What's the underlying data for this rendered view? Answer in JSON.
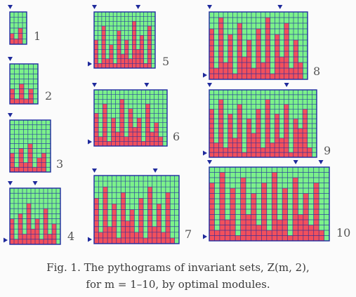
{
  "caption": {
    "line1": "Fig. 1. The pythograms of invariant sets,  Z(m, 2),",
    "line2": "for m = 1–10,  by optimal modules."
  },
  "colors": {
    "green": "#7cf28a",
    "red": "#f2505c",
    "grid": "#1e2aa0",
    "marker": "#1f2a9c",
    "label": "#555555"
  },
  "pythograms": [
    {
      "m": 1,
      "label": "1",
      "cols": 4,
      "rows": 6,
      "heights": [
        2,
        1,
        3,
        0
      ]
    },
    {
      "m": 2,
      "label": "2",
      "cols": 6,
      "rows": 8,
      "heights": [
        3,
        1,
        4,
        1,
        3,
        0
      ]
    },
    {
      "m": 3,
      "label": "3",
      "cols": 9,
      "rows": 11,
      "heights": [
        4,
        1,
        5,
        2,
        6,
        1,
        3,
        4,
        0
      ]
    },
    {
      "m": 4,
      "label": "4",
      "cols": 12,
      "rows": 11,
      "heights": [
        5,
        1,
        6,
        2,
        8,
        3,
        5,
        1,
        7,
        2,
        4,
        0
      ]
    },
    {
      "m": 5,
      "label": "5",
      "cols": 16,
      "rows": 12,
      "heights": [
        6,
        1,
        9,
        2,
        5,
        1,
        8,
        3,
        6,
        2,
        10,
        4,
        7,
        1,
        9,
        0
      ]
    },
    {
      "m": 6,
      "label": "6",
      "cols": 17,
      "rows": 12,
      "heights": [
        7,
        2,
        9,
        1,
        6,
        3,
        10,
        2,
        8,
        4,
        6,
        1,
        9,
        3,
        5,
        2,
        0
      ]
    },
    {
      "m": 7,
      "label": "7",
      "cols": 19,
      "rows": 12,
      "heights": [
        8,
        2,
        10,
        3,
        7,
        1,
        9,
        4,
        6,
        2,
        8,
        1,
        10,
        3,
        7,
        2,
        9,
        1,
        0
      ]
    },
    {
      "m": 8,
      "label": "8",
      "cols": 21,
      "rows": 12,
      "heights": [
        9,
        2,
        11,
        3,
        8,
        1,
        10,
        4,
        7,
        2,
        9,
        3,
        11,
        1,
        8,
        4,
        10,
        2,
        7,
        3,
        0
      ]
    },
    {
      "m": 9,
      "label": "9",
      "cols": 23,
      "rows": 14,
      "heights": [
        10,
        3,
        12,
        2,
        9,
        4,
        11,
        1,
        8,
        5,
        10,
        2,
        12,
        3,
        9,
        4,
        11,
        1,
        8,
        6,
        10,
        2,
        0
      ]
    },
    {
      "m": 10,
      "label": "10",
      "cols": 23,
      "rows": 14,
      "heights": [
        11,
        2,
        13,
        4,
        10,
        1,
        12,
        5,
        9,
        3,
        11,
        2,
        13,
        4,
        10,
        1,
        12,
        5,
        9,
        3,
        11,
        2,
        0
      ]
    }
  ]
}
